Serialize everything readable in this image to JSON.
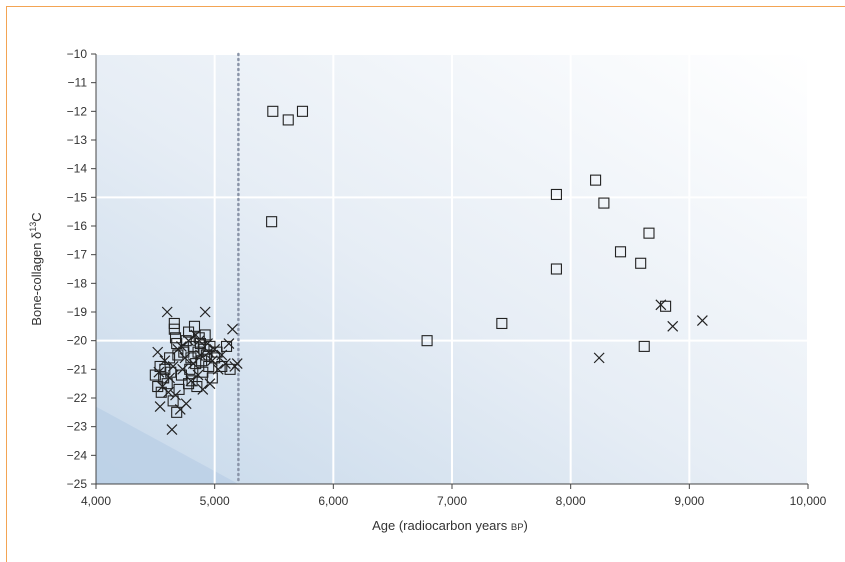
{
  "chart_data": {
    "type": "scatter",
    "xlabel_main": "Age (radiocarbon years ",
    "xlabel_bp": "BP",
    "xlabel_end": ")",
    "ylabel_main": "Bone-collagen δ",
    "ylabel_sup": "13",
    "ylabel_end": "C",
    "xlim": [
      4000,
      10000
    ],
    "ylim": [
      -25,
      -10
    ],
    "x_ticks": [
      4000,
      5000,
      6000,
      7000,
      8000,
      9000,
      10000
    ],
    "x_tick_labels": [
      "4,000",
      "5,000",
      "6,000",
      "7,000",
      "8,000",
      "9,000",
      "10,000"
    ],
    "y_ticks": [
      -10,
      -11,
      -12,
      -13,
      -14,
      -15,
      -16,
      -17,
      -18,
      -19,
      -20,
      -21,
      -22,
      -23,
      -24,
      -25
    ],
    "y_tick_labels": [
      "−10",
      "−11",
      "−12",
      "−13",
      "−14",
      "−15",
      "−16",
      "−17",
      "−18",
      "−19",
      "−20",
      "−21",
      "−22",
      "−23",
      "−24",
      "−25"
    ],
    "reference_line_x": 5200,
    "grid": true,
    "colors": {
      "marker": "#222222",
      "reference_line": "#8a94a8",
      "background_light": "#ffffff",
      "background_dark": "#b9cfe6",
      "frame": "#f3a453"
    },
    "series": [
      {
        "marker": "square",
        "points": [
          [
            5490,
            -12.0
          ],
          [
            5620,
            -12.3
          ],
          [
            5740,
            -12.0
          ],
          [
            5480,
            -15.85
          ],
          [
            6790,
            -20.0
          ],
          [
            7420,
            -19.4
          ],
          [
            7880,
            -14.9
          ],
          [
            7880,
            -17.5
          ],
          [
            8210,
            -14.4
          ],
          [
            8280,
            -15.2
          ],
          [
            8420,
            -16.9
          ],
          [
            8590,
            -17.3
          ],
          [
            8660,
            -16.25
          ],
          [
            8620,
            -20.2
          ],
          [
            8800,
            -18.8
          ],
          [
            4500,
            -21.2
          ],
          [
            4520,
            -21.6
          ],
          [
            4540,
            -20.9
          ],
          [
            4550,
            -21.8
          ],
          [
            4570,
            -21.3
          ],
          [
            4580,
            -21.0
          ],
          [
            4600,
            -21.5
          ],
          [
            4620,
            -20.6
          ],
          [
            4630,
            -21.1
          ],
          [
            4650,
            -22.1
          ],
          [
            4660,
            -19.4
          ],
          [
            4660,
            -19.6
          ],
          [
            4670,
            -19.9
          ],
          [
            4680,
            -20.1
          ],
          [
            4690,
            -20.5
          ],
          [
            4700,
            -21.7
          ],
          [
            4720,
            -21.2
          ],
          [
            4740,
            -20.4
          ],
          [
            4760,
            -20.0
          ],
          [
            4780,
            -19.7
          ],
          [
            4790,
            -21.0
          ],
          [
            4800,
            -20.6
          ],
          [
            4810,
            -21.4
          ],
          [
            4820,
            -20.2
          ],
          [
            4830,
            -19.5
          ],
          [
            4840,
            -20.8
          ],
          [
            4850,
            -21.6
          ],
          [
            4860,
            -20.4
          ],
          [
            4870,
            -19.9
          ],
          [
            4880,
            -20.1
          ],
          [
            4890,
            -20.7
          ],
          [
            4900,
            -21.1
          ],
          [
            4910,
            -20.3
          ],
          [
            4920,
            -19.8
          ],
          [
            4930,
            -20.5
          ],
          [
            4950,
            -20.9
          ],
          [
            4960,
            -20.2
          ],
          [
            4980,
            -21.3
          ],
          [
            5000,
            -20.6
          ],
          [
            5020,
            -20.4
          ],
          [
            5060,
            -20.9
          ],
          [
            5100,
            -20.2
          ],
          [
            5130,
            -21.0
          ],
          [
            4680,
            -22.5
          ],
          [
            4780,
            -21.5
          ]
        ]
      },
      {
        "marker": "cross",
        "points": [
          [
            8240,
            -20.6
          ],
          [
            8760,
            -18.75
          ],
          [
            8860,
            -19.5
          ],
          [
            9110,
            -19.3
          ],
          [
            4520,
            -20.4
          ],
          [
            4540,
            -22.3
          ],
          [
            4560,
            -21.6
          ],
          [
            4580,
            -20.7
          ],
          [
            4600,
            -19.0
          ],
          [
            4620,
            -21.3
          ],
          [
            4640,
            -23.1
          ],
          [
            4650,
            -20.9
          ],
          [
            4670,
            -21.9
          ],
          [
            4690,
            -20.3
          ],
          [
            4710,
            -22.4
          ],
          [
            4730,
            -21.0
          ],
          [
            4750,
            -20.6
          ],
          [
            4760,
            -22.2
          ],
          [
            4780,
            -20.0
          ],
          [
            4800,
            -21.4
          ],
          [
            4820,
            -20.8
          ],
          [
            4840,
            -19.8
          ],
          [
            4860,
            -21.2
          ],
          [
            4880,
            -20.5
          ],
          [
            4900,
            -21.7
          ],
          [
            4920,
            -19.0
          ],
          [
            4940,
            -20.1
          ],
          [
            4960,
            -21.5
          ],
          [
            4980,
            -20.7
          ],
          [
            5000,
            -20.3
          ],
          [
            5030,
            -21.0
          ],
          [
            5060,
            -20.5
          ],
          [
            5090,
            -20.8
          ],
          [
            5120,
            -20.1
          ],
          [
            5150,
            -19.6
          ],
          [
            5170,
            -20.9
          ],
          [
            5190,
            -20.8
          ],
          [
            4720,
            -20.2
          ],
          [
            4870,
            -20.0
          ],
          [
            4950,
            -20.4
          ],
          [
            4610,
            -21.8
          ],
          [
            4530,
            -21.1
          ]
        ]
      }
    ]
  }
}
